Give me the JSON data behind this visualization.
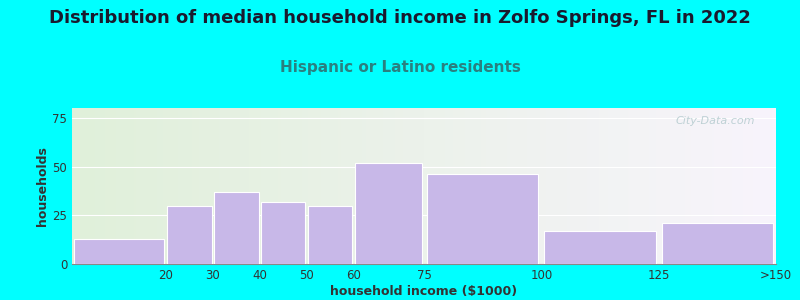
{
  "title": "Distribution of median household income in Zolfo Springs, FL in 2022",
  "subtitle": "Hispanic or Latino residents",
  "xlabel": "household income ($1000)",
  "ylabel": "households",
  "background_color": "#00FFFF",
  "plot_bg_gradient_left": "#e0f0da",
  "plot_bg_gradient_right": "#f8f4fc",
  "bar_color": "#c8b8e8",
  "bar_edge_color": "#ffffff",
  "categories": [
    "20",
    "30",
    "40",
    "50",
    "60",
    "75",
    "100",
    "125",
    ">150"
  ],
  "values": [
    13,
    30,
    37,
    32,
    30,
    52,
    46,
    17,
    21
  ],
  "ylim": [
    0,
    80
  ],
  "yticks": [
    0,
    25,
    50,
    75
  ],
  "title_fontsize": 13,
  "subtitle_fontsize": 11,
  "title_color": "#1a1a2e",
  "subtitle_color": "#2a8080",
  "axis_label_fontsize": 9,
  "tick_fontsize": 8.5,
  "watermark_text": "City-Data.com",
  "watermark_color": "#b0c8cc"
}
